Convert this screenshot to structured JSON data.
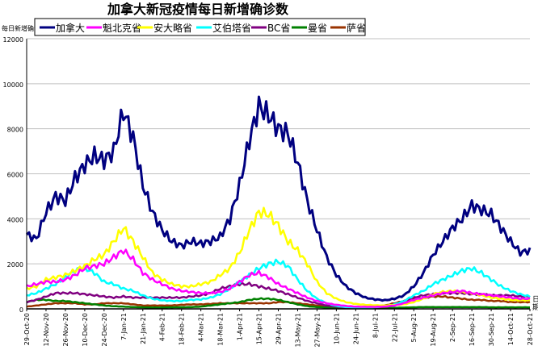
{
  "chart_data": {
    "type": "line",
    "title": "加拿大新冠疫情每日新增确诊数",
    "ylabel": "每日新增确诊",
    "xlabel": "日期",
    "ylim": [
      0,
      12000
    ],
    "yticks": [
      0,
      2000,
      4000,
      6000,
      8000,
      10000,
      12000
    ],
    "grid": true,
    "legend_placement": "top",
    "x_start": "2020-10-29",
    "x_step_days": 7,
    "xtick_labels": [
      "29-Oct-20",
      "12-Nov-20",
      "26-Nov-20",
      "10-Dec-20",
      "24-Dec-20",
      "7-Jan-21",
      "21-Jan-21",
      "4-Feb-21",
      "18-Feb-21",
      "4-Mar-21",
      "18-Mar-21",
      "1-Apr-21",
      "15-Apr-21",
      "29-Apr-21",
      "13-May-21",
      "27-May-21",
      "10-Jun-21",
      "24-Jun-21",
      "8-Jul-21",
      "22-Jul-21",
      "5-Aug-21",
      "19-Aug-21",
      "2-Sep-21",
      "16-Sep-21",
      "30-Sep-21",
      "14-Oct-21",
      "28-Oct-21"
    ],
    "series": [
      {
        "name": "加拿大",
        "color": "#000080",
        "values": [
          3300,
          3100,
          4300,
          5000,
          4800,
          5800,
          6400,
          6800,
          6600,
          7000,
          8800,
          7600,
          5500,
          4300,
          3500,
          3000,
          2800,
          3000,
          2900,
          3000,
          3200,
          4000,
          5500,
          7500,
          9000,
          8600,
          8000,
          7800,
          6500,
          4800,
          3500,
          2300,
          1500,
          1000,
          700,
          500,
          420,
          380,
          450,
          600,
          1000,
          1600,
          2400,
          3000,
          3600,
          4000,
          4600,
          4400,
          4200,
          3600,
          3000,
          2500,
          2600
        ]
      },
      {
        "name": "魁北克省",
        "color": "#ff00ff",
        "values": [
          1000,
          1100,
          1200,
          1200,
          1300,
          1500,
          1800,
          1900,
          2000,
          2300,
          2600,
          2200,
          1600,
          1300,
          1100,
          900,
          800,
          750,
          700,
          700,
          750,
          900,
          1200,
          1500,
          1600,
          1400,
          1100,
          900,
          700,
          500,
          350,
          250,
          180,
          130,
          100,
          90,
          90,
          100,
          150,
          250,
          400,
          500,
          600,
          700,
          750,
          800,
          700,
          650,
          600,
          550,
          500,
          450,
          450
        ]
      },
      {
        "name": "安大略省",
        "color": "#ffff00",
        "values": [
          900,
          1000,
          1300,
          1400,
          1500,
          1700,
          1900,
          2200,
          2400,
          3000,
          3600,
          3000,
          2300,
          1600,
          1300,
          1100,
          1000,
          1000,
          1100,
          1200,
          1500,
          1800,
          2500,
          3500,
          4300,
          4200,
          3700,
          3000,
          2600,
          2000,
          1200,
          700,
          450,
          300,
          220,
          180,
          160,
          150,
          170,
          200,
          300,
          450,
          650,
          750,
          800,
          750,
          700,
          600,
          500,
          450,
          400,
          380,
          380
        ]
      },
      {
        "name": "艾伯塔省",
        "color": "#00ffff",
        "values": [
          600,
          700,
          900,
          1100,
          1400,
          1700,
          1800,
          1600,
          1200,
          1100,
          900,
          800,
          600,
          450,
          380,
          350,
          350,
          400,
          420,
          500,
          650,
          900,
          1200,
          1500,
          1800,
          2000,
          2100,
          1900,
          1300,
          800,
          450,
          250,
          130,
          80,
          60,
          50,
          70,
          120,
          200,
          350,
          600,
          800,
          1100,
          1300,
          1500,
          1700,
          1800,
          1600,
          1300,
          1000,
          800,
          650,
          550
        ]
      },
      {
        "name": "BC省",
        "color": "#800080",
        "values": [
          300,
          400,
          550,
          700,
          700,
          700,
          650,
          600,
          550,
          500,
          550,
          500,
          500,
          500,
          500,
          500,
          500,
          550,
          600,
          700,
          900,
          1000,
          1100,
          1100,
          1000,
          900,
          800,
          650,
          500,
          350,
          250,
          150,
          100,
          60,
          50,
          50,
          60,
          100,
          200,
          350,
          500,
          600,
          650,
          700,
          700,
          700,
          650,
          650,
          600,
          600,
          600,
          550,
          550
        ]
      },
      {
        "name": "曼省",
        "color": "#008000",
        "values": [
          300,
          400,
          400,
          350,
          350,
          300,
          250,
          200,
          150,
          120,
          100,
          80,
          70,
          60,
          60,
          70,
          70,
          80,
          100,
          150,
          200,
          250,
          300,
          400,
          450,
          450,
          400,
          300,
          200,
          120,
          80,
          60,
          50,
          40,
          40,
          40,
          40,
          40,
          50,
          60,
          70,
          80,
          80,
          80,
          80,
          80,
          80,
          80,
          70,
          70,
          70,
          70,
          70
        ]
      },
      {
        "name": "萨省",
        "color": "#993300",
        "values": [
          100,
          150,
          200,
          250,
          250,
          250,
          200,
          200,
          250,
          250,
          250,
          200,
          150,
          150,
          150,
          150,
          180,
          200,
          200,
          220,
          250,
          250,
          250,
          250,
          250,
          250,
          300,
          300,
          250,
          200,
          150,
          100,
          80,
          60,
          50,
          60,
          80,
          150,
          250,
          350,
          450,
          500,
          550,
          550,
          500,
          450,
          400,
          400,
          350,
          350,
          300,
          300,
          300
        ]
      }
    ]
  }
}
